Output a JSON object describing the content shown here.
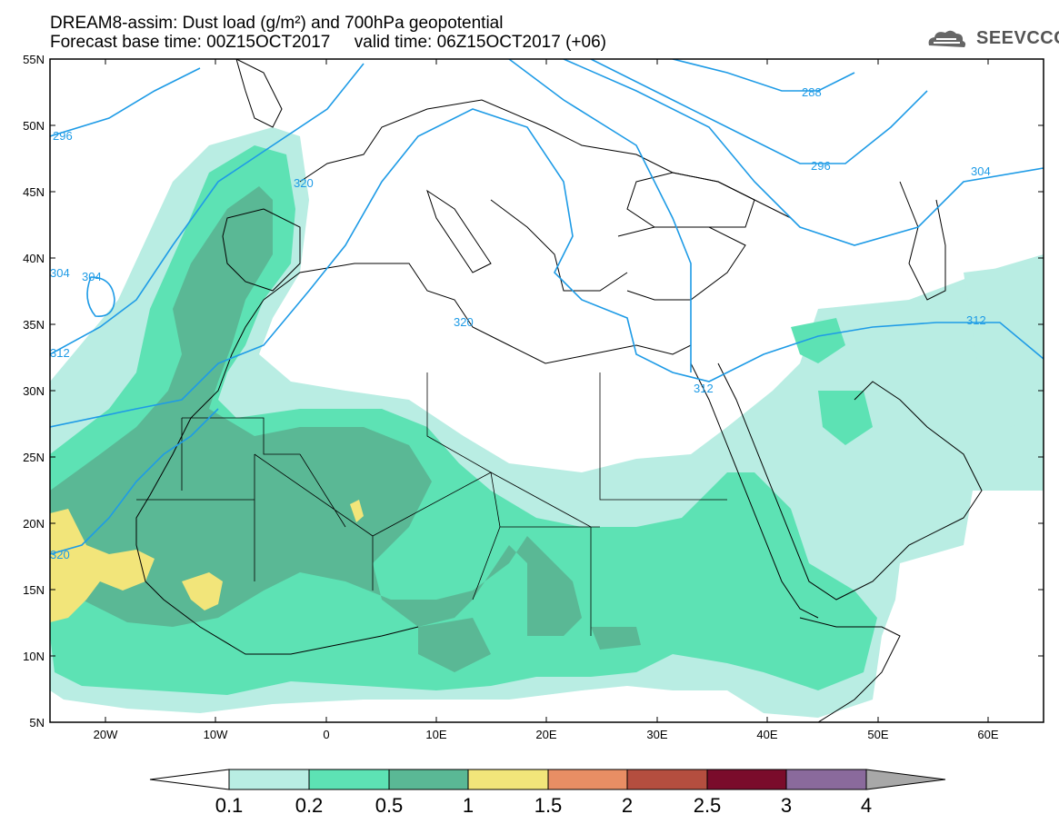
{
  "title": {
    "line1": "DREAM8-assim: Dust load (g/m²) and 700hPa geopotential",
    "line2": "Forecast base time: 00Z15OCT2017     valid time: 06Z15OCT2017 (+06)"
  },
  "logo": {
    "text": "SEEVCCC",
    "icon": "cloud-icon"
  },
  "map": {
    "lat_labels": [
      "55N",
      "50N",
      "45N",
      "40N",
      "35N",
      "30N",
      "25N",
      "20N",
      "15N",
      "10N",
      "5N"
    ],
    "lon_labels": [
      "20W",
      "10W",
      "0",
      "10E",
      "20E",
      "30E",
      "40E",
      "50E",
      "60E"
    ],
    "lat_range": [
      5,
      55
    ],
    "lon_range": [
      -25,
      65
    ]
  },
  "contour_labels": [
    "296",
    "288",
    "296",
    "304",
    "304",
    "304",
    "320",
    "320",
    "312",
    "312",
    "312",
    "320"
  ],
  "colorbar": {
    "ticks": [
      "0.1",
      "0.2",
      "0.5",
      "1",
      "1.5",
      "2",
      "2.5",
      "3",
      "4"
    ],
    "colors": [
      "#ffffff",
      "#b9ede3",
      "#5de2b4",
      "#5ab895",
      "#f2e57a",
      "#e88e64",
      "#b44e3f",
      "#7a0c2b",
      "#8a6a9c",
      "#a8a8a8"
    ]
  },
  "colors": {
    "contour": "#1e9be6",
    "dust_01": "#b9ede3",
    "dust_02": "#5de2b4",
    "dust_05": "#5ab895",
    "dust_1": "#f2e57a"
  }
}
